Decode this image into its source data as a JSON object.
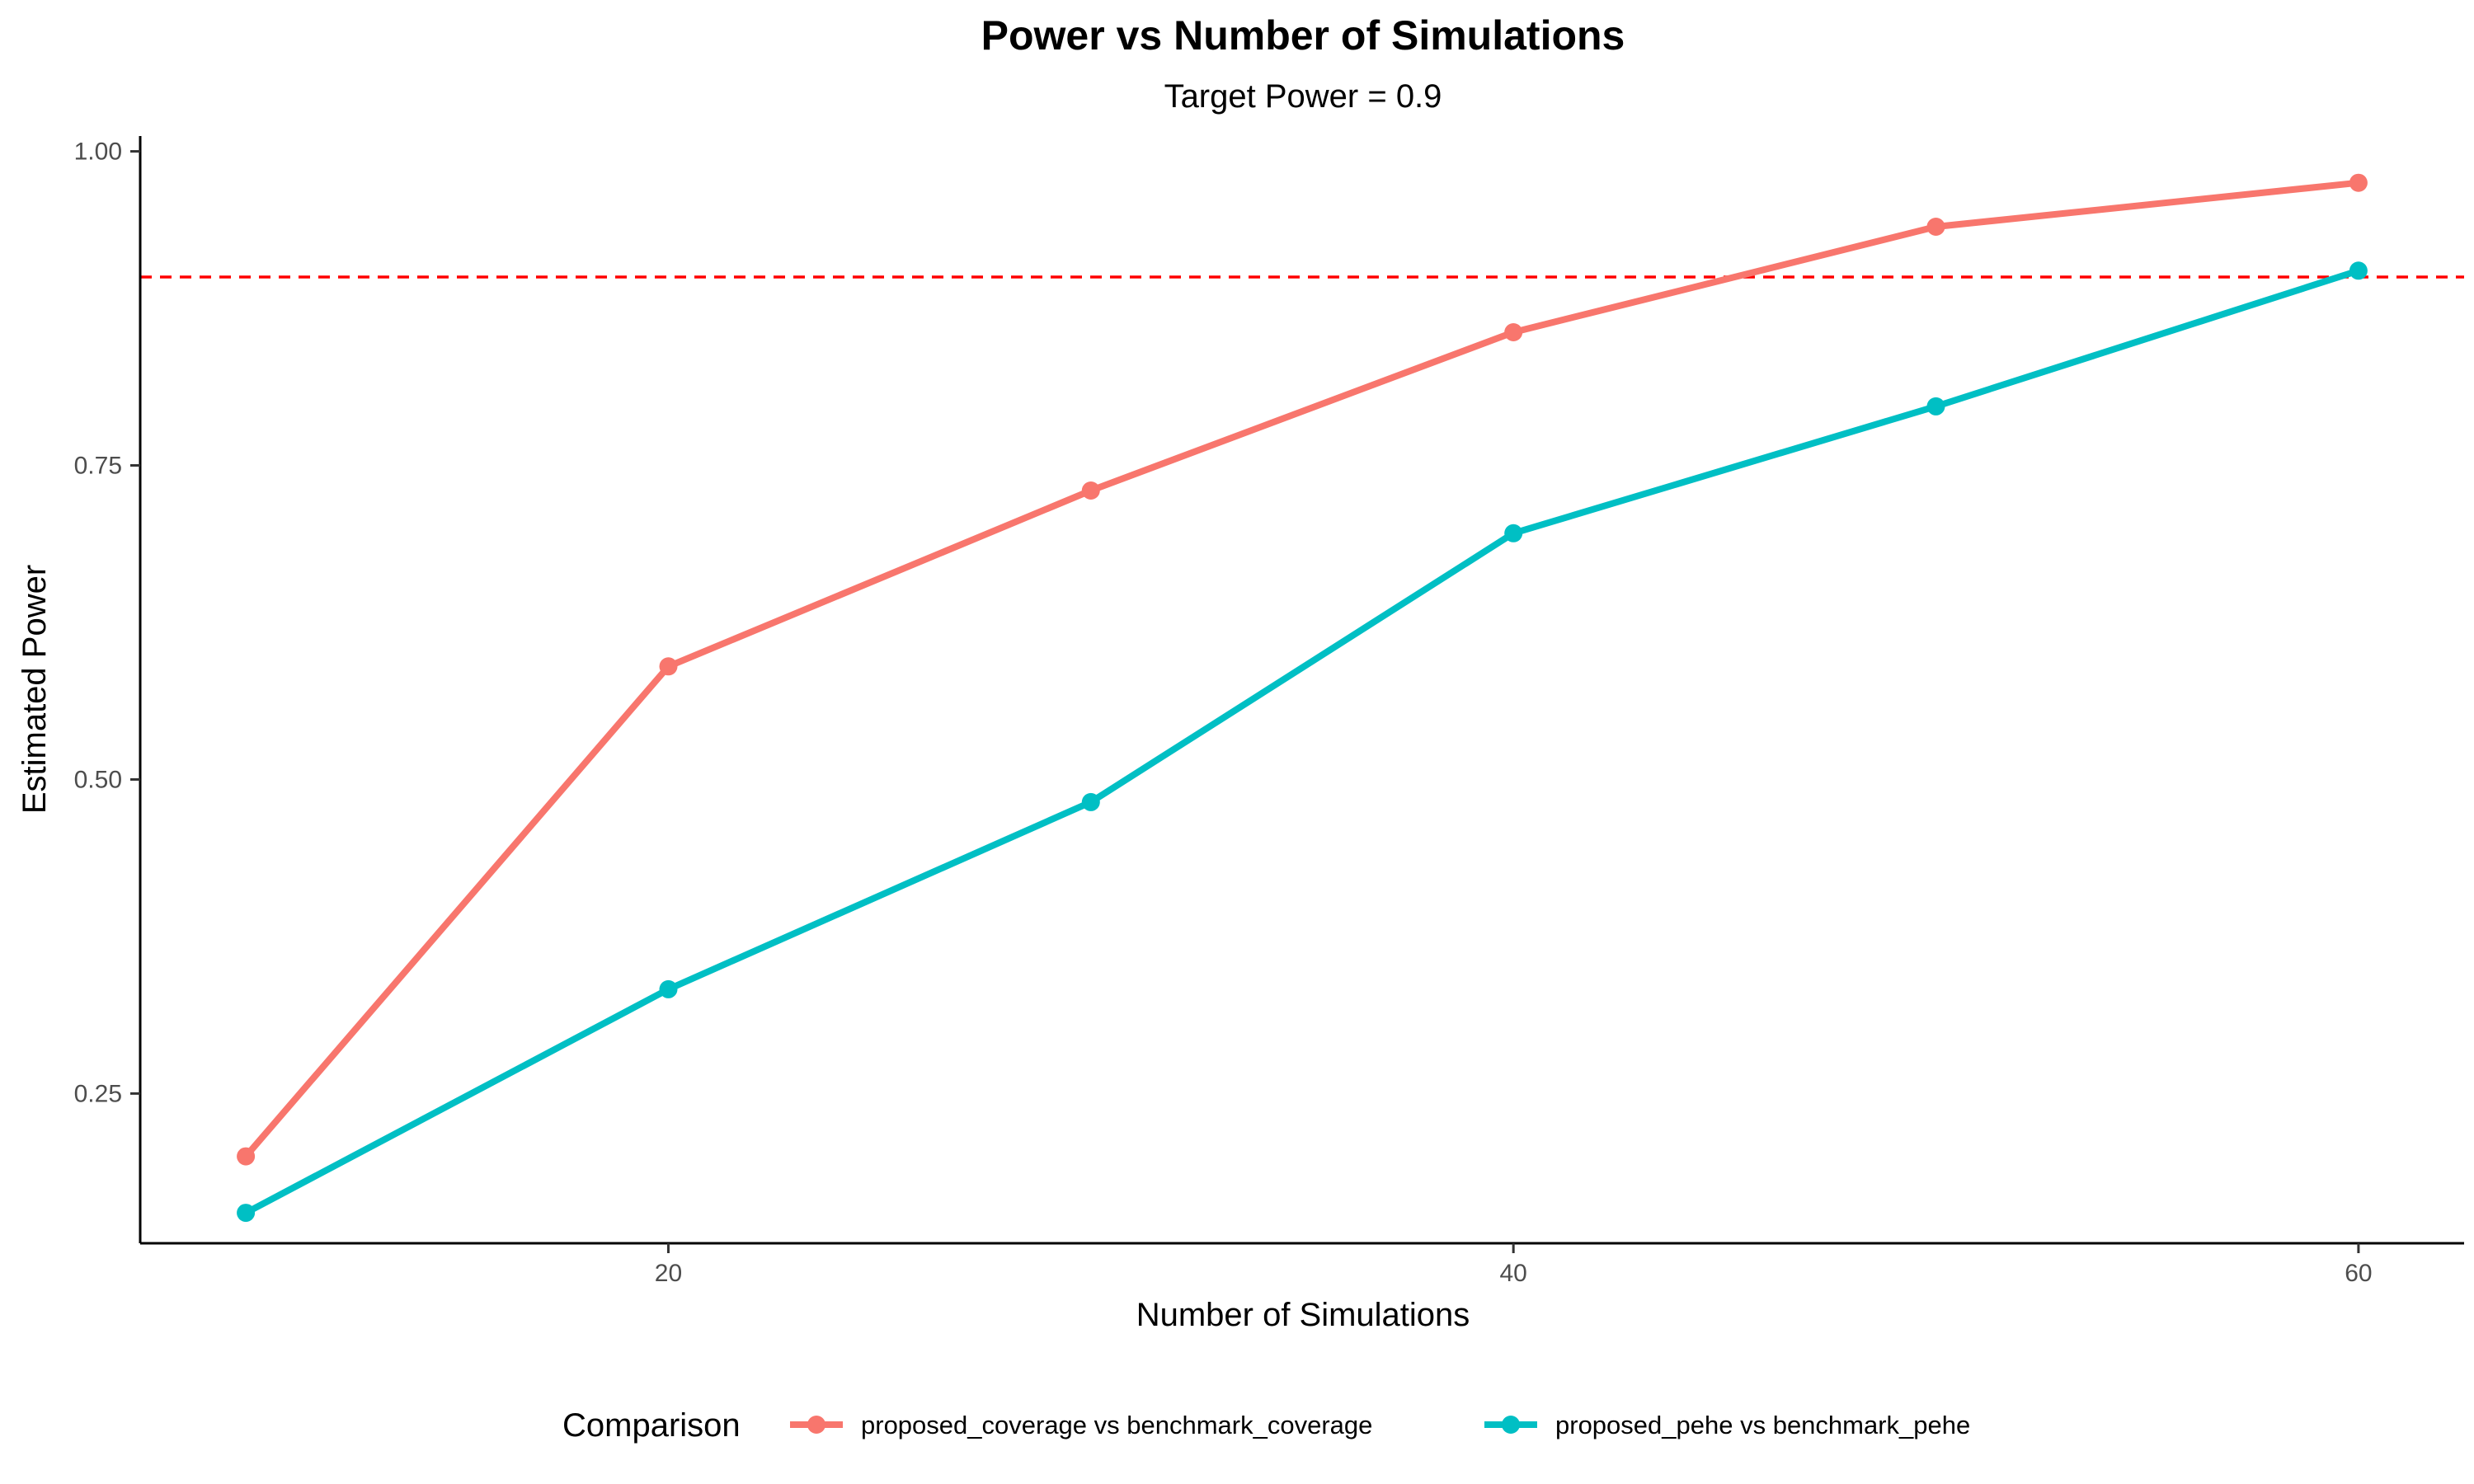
{
  "chart_data": {
    "type": "line",
    "title": "Power vs Number of Simulations",
    "subtitle": "Target Power = 0.9",
    "xlabel": "Number of Simulations",
    "ylabel": "Estimated Power",
    "x": [
      10,
      20,
      30,
      40,
      50,
      60
    ],
    "series": [
      {
        "name": "proposed_coverage vs benchmark_coverage",
        "color": "#F8766D",
        "values": [
          0.2,
          0.59,
          0.73,
          0.856,
          0.94,
          0.975
        ]
      },
      {
        "name": "proposed_pehe vs benchmark_pehe",
        "color": "#00BFC4",
        "values": [
          0.155,
          0.333,
          0.482,
          0.696,
          0.797,
          0.905
        ]
      }
    ],
    "xlim": [
      7.5,
      62.5
    ],
    "ylim": [
      0.1308,
      1.0122
    ],
    "x_ticks": [
      {
        "value": 20,
        "label": "20"
      },
      {
        "value": 40,
        "label": "40"
      },
      {
        "value": 60,
        "label": "60"
      }
    ],
    "y_ticks": [
      {
        "value": 0.25,
        "label": "0.25"
      },
      {
        "value": 0.5,
        "label": "0.50"
      },
      {
        "value": 0.75,
        "label": "0.75"
      },
      {
        "value": 1.0,
        "label": "1.00"
      }
    ],
    "reference_line": {
      "y": 0.9,
      "color": "#FF0000",
      "style": "dashed"
    },
    "legend": {
      "title": "Comparison",
      "position": "bottom"
    },
    "grid": false
  }
}
